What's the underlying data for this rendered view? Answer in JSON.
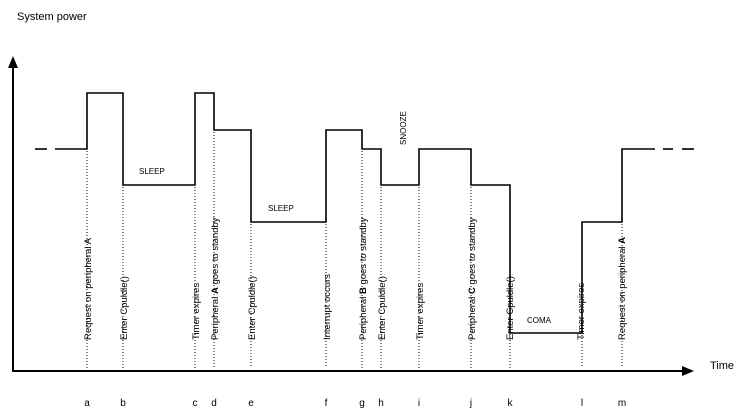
{
  "y_axis_title": "System power",
  "x_axis_title": "Time",
  "state_labels": {
    "sleep_1": "SLEEP",
    "sleep_2": "SLEEP",
    "snooze": "SNOOZE",
    "coma": "COMA"
  },
  "ticks": [
    {
      "letter": "a",
      "event": "Request on peripheral A",
      "bold": ""
    },
    {
      "letter": "b",
      "event": "Enter Cpuldle()",
      "bold": ""
    },
    {
      "letter": "c",
      "event": "Timer expires",
      "bold": ""
    },
    {
      "letter": "d",
      "event": "Peripheral A goes to standby",
      "bold": "A"
    },
    {
      "letter": "e",
      "event": "Enter Cpuldle()",
      "bold": ""
    },
    {
      "letter": "f",
      "event": "Interrupt occurs",
      "bold": ""
    },
    {
      "letter": "g",
      "event": "Peripheral B goes to standby",
      "bold": "B"
    },
    {
      "letter": "h",
      "event": "Enter Cpuldle()",
      "bold": ""
    },
    {
      "letter": "i",
      "event": "Timer expires",
      "bold": ""
    },
    {
      "letter": "j",
      "event": "Peripheral C goes to standby",
      "bold": "C"
    },
    {
      "letter": "k",
      "event": "Enter Cpuldle()",
      "bold": ""
    },
    {
      "letter": "l",
      "event": "Timer expires",
      "bold": ""
    },
    {
      "letter": "m",
      "event": "Request on peripheral A",
      "bold": "A"
    }
  ]
}
